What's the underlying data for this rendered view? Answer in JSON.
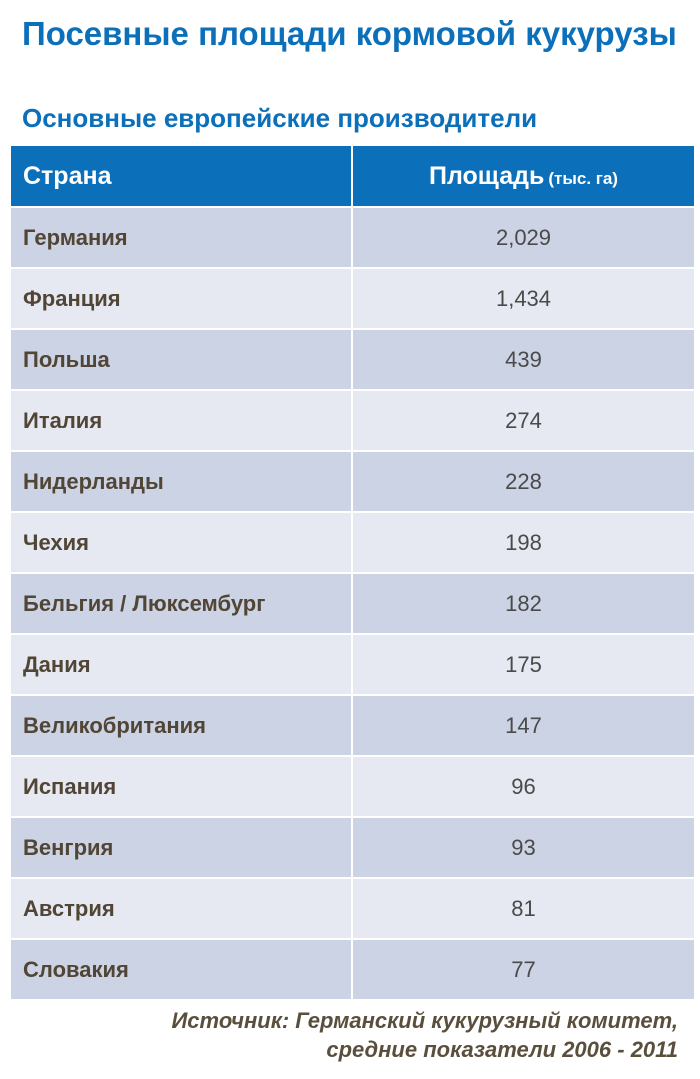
{
  "chart_data": {
    "type": "table",
    "title": "Посевные площади кормовой кукурузы",
    "subtitle": "Основные европейские производители",
    "columns": {
      "country": "Страна",
      "area": "Площадь",
      "area_unit": "(тыс. га)"
    },
    "rows": [
      {
        "country": "Германия",
        "value": "2,029"
      },
      {
        "country": "Франция",
        "value": "1,434"
      },
      {
        "country": "Польша",
        "value": "439"
      },
      {
        "country": "Италия",
        "value": "274"
      },
      {
        "country": "Нидерланды",
        "value": "228"
      },
      {
        "country": "Чехия",
        "value": "198"
      },
      {
        "country": "Бельгия / Люксембург",
        "value": "182"
      },
      {
        "country": "Дания",
        "value": "175"
      },
      {
        "country": "Великобритания",
        "value": "147"
      },
      {
        "country": "Испания",
        "value": "96"
      },
      {
        "country": "Венгрия",
        "value": "93"
      },
      {
        "country": "Австрия",
        "value": "81"
      },
      {
        "country": "Словакия",
        "value": "77"
      }
    ],
    "source_line1": "Источник: Германский кукурузный комитет,",
    "source_line2": "средние показатели 2006 - 2011"
  },
  "colors": {
    "accent": "#0b6fba",
    "row_dark": "#cbd3e5",
    "row_light": "#e6e9f2",
    "country_text": "#514535"
  }
}
